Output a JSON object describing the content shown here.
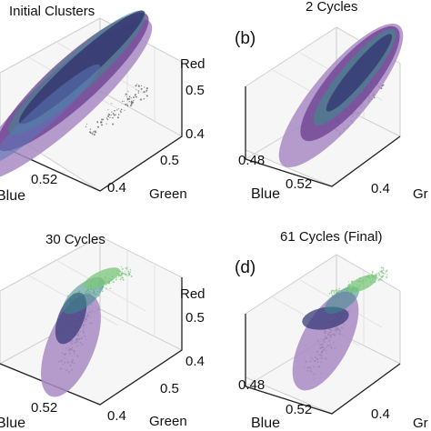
{
  "chart_data": [
    {
      "type": "scatter",
      "panel_label": "",
      "title": "Initial Clusters",
      "axes": {
        "z_label": "Red",
        "y_label": "Green",
        "x_label": "Blue"
      },
      "z_ticks": [
        "0.5",
        "0.4"
      ],
      "y_ticks": [
        "0.5",
        "0.4"
      ],
      "x_ticks": [
        "0.52"
      ]
    },
    {
      "type": "scatter",
      "panel_label": "(b)",
      "title": "2 Cycles",
      "axes": {
        "z_label": "",
        "y_label": "Gr",
        "x_label": "Blue"
      },
      "z_ticks": [],
      "y_ticks": [
        "0.4"
      ],
      "x_ticks": [
        "0.48",
        "0.52"
      ]
    },
    {
      "type": "scatter",
      "panel_label": "",
      "title": "30 Cycles",
      "axes": {
        "z_label": "Red",
        "y_label": "Green",
        "x_label": "Blue"
      },
      "z_ticks": [
        "0.5",
        "0.4"
      ],
      "y_ticks": [
        "0.5",
        "0.4"
      ],
      "x_ticks": [
        "0.52"
      ]
    },
    {
      "type": "scatter",
      "panel_label": "(d)",
      "title": "61 Cycles (Final)",
      "axes": {
        "z_label": "",
        "y_label": "Gr",
        "x_label": "Blue"
      },
      "z_ticks": [],
      "y_ticks": [
        "0.4"
      ],
      "x_ticks": [
        "0.48",
        "0.52"
      ]
    }
  ],
  "colors": {
    "purple": "#6a3d8f",
    "lavender": "#a98bc4",
    "teal": "#3b8c88",
    "green": "#79c77b",
    "navy": "#2d2a6b",
    "grid": "#d3d3d3",
    "pane": "#f4f4f4"
  }
}
